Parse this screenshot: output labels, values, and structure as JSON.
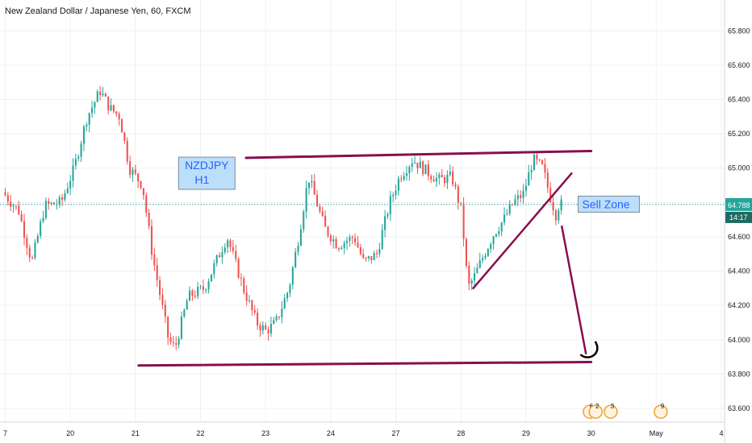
{
  "chart_data": {
    "type": "candlestick",
    "title": "New Zealand Dollar / Japanese Yen, 60, FXCM",
    "symbol_label": "NZDJPY",
    "timeframe_label": "H1",
    "ylim": [
      63.52,
      65.98
    ],
    "y_ticks": [
      63.6,
      63.8,
      64.0,
      64.2,
      64.4,
      64.6,
      64.8,
      65.0,
      65.2,
      65.4,
      65.6,
      65.8
    ],
    "y_tick_labels": [
      "63.600",
      "63.800",
      "64.000",
      "64.200",
      "64.400",
      "64.600",
      "64.800",
      "65.000",
      "65.200",
      "65.400",
      "65.600",
      "65.800"
    ],
    "x_ticks": [
      {
        "label": "7",
        "t": -0.1
      },
      {
        "label": "20",
        "t": 0.9
      },
      {
        "label": "21",
        "t": 1.9
      },
      {
        "label": "22",
        "t": 2.9
      },
      {
        "label": "23",
        "t": 3.9
      },
      {
        "label": "24",
        "t": 4.9
      },
      {
        "label": "27",
        "t": 5.9
      },
      {
        "label": "28",
        "t": 6.9
      },
      {
        "label": "29",
        "t": 7.9
      },
      {
        "label": "30",
        "t": 8.9
      },
      {
        "label": "May",
        "t": 9.9
      },
      {
        "label": "4",
        "t": 10.9
      }
    ],
    "xlim": [
      -0.18,
      10.95
    ],
    "grid": true,
    "colors": {
      "up": "#26a69a",
      "down": "#ef5350",
      "trend": "#880e4f",
      "current_line": "#26a69a",
      "current_label_bg": "#26a69a"
    },
    "current_price_label": "64.788",
    "current_price": 64.788,
    "countdown_label": "14:17",
    "anchors": [
      [
        -0.1,
        64.86
      ],
      [
        0.15,
        64.75
      ],
      [
        0.35,
        64.45
      ],
      [
        0.55,
        64.78
      ],
      [
        0.8,
        64.8
      ],
      [
        1.0,
        65.0
      ],
      [
        1.2,
        65.3
      ],
      [
        1.4,
        65.45
      ],
      [
        1.55,
        65.35
      ],
      [
        1.7,
        65.3
      ],
      [
        1.85,
        65.0
      ],
      [
        2.05,
        64.9
      ],
      [
        2.2,
        64.5
      ],
      [
        2.45,
        64.0
      ],
      [
        2.55,
        63.95
      ],
      [
        2.75,
        64.25
      ],
      [
        3.0,
        64.3
      ],
      [
        3.35,
        64.6
      ],
      [
        3.6,
        64.3
      ],
      [
        3.8,
        64.1
      ],
      [
        3.95,
        64.05
      ],
      [
        4.1,
        64.1
      ],
      [
        4.3,
        64.3
      ],
      [
        4.45,
        64.6
      ],
      [
        4.6,
        64.95
      ],
      [
        4.85,
        64.65
      ],
      [
        5.05,
        64.55
      ],
      [
        5.3,
        64.6
      ],
      [
        5.45,
        64.45
      ],
      [
        5.65,
        64.5
      ],
      [
        5.85,
        64.8
      ],
      [
        6.0,
        64.95
      ],
      [
        6.2,
        65.05
      ],
      [
        6.45,
        64.97
      ],
      [
        6.6,
        64.93
      ],
      [
        6.8,
        64.95
      ],
      [
        6.95,
        64.75
      ],
      [
        7.05,
        64.3
      ],
      [
        7.15,
        64.37
      ],
      [
        7.3,
        64.5
      ],
      [
        7.45,
        64.62
      ],
      [
        7.6,
        64.7
      ],
      [
        7.75,
        64.8
      ],
      [
        7.9,
        64.85
      ],
      [
        8.05,
        65.05
      ],
      [
        8.2,
        65.0
      ],
      [
        8.3,
        64.85
      ],
      [
        8.4,
        64.73
      ],
      [
        8.45,
        64.79
      ]
    ],
    "annotations": {
      "resistance_line": [
        [
          3.6,
          65.06
        ],
        [
          8.9,
          65.1
        ]
      ],
      "support_line": [
        [
          1.95,
          63.85
        ],
        [
          8.9,
          63.87
        ]
      ],
      "rising_trendline": [
        [
          7.09,
          64.3
        ],
        [
          8.6,
          64.97
        ]
      ],
      "sell_arrow": [
        [
          8.45,
          64.66
        ],
        [
          8.82,
          63.92
        ]
      ],
      "zone_label": "Sell Zone",
      "zone_label_price": 64.79
    },
    "events": [
      {
        "label": "6",
        "t": 8.88,
        "price": 63.58
      },
      {
        "label": "2",
        "t": 8.97,
        "price": 63.58
      },
      {
        "label": "3",
        "t": 9.2,
        "price": 63.58
      },
      {
        "label": "9",
        "t": 9.97,
        "price": 63.58
      }
    ]
  }
}
